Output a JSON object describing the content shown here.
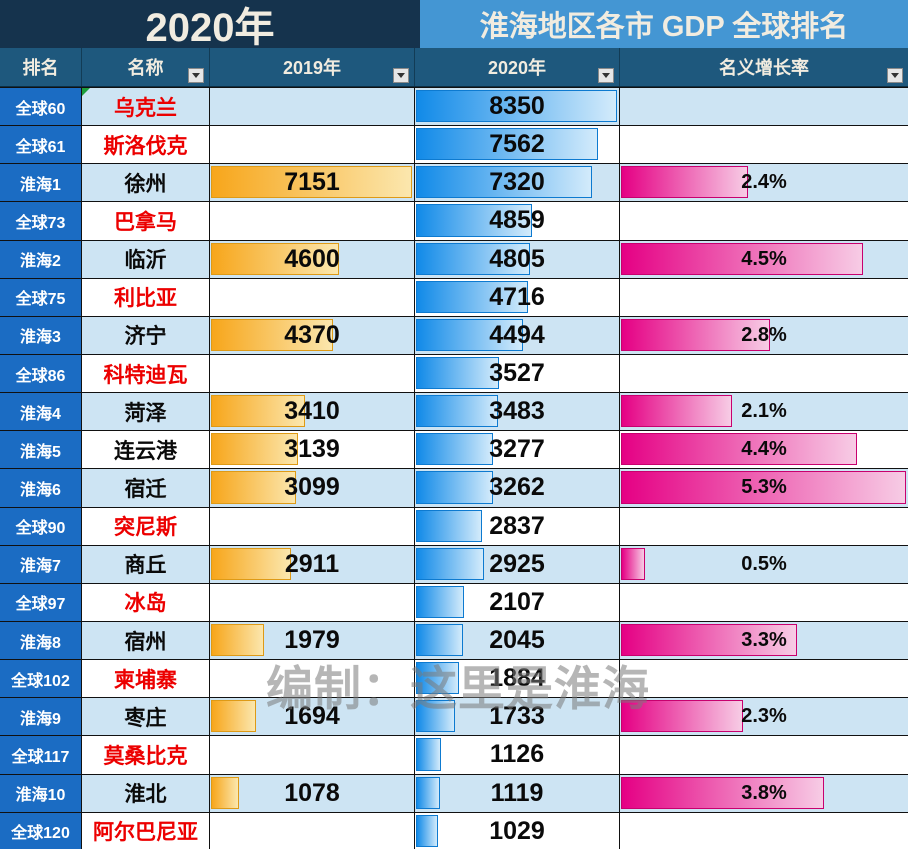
{
  "title": {
    "year": "2020年",
    "main": "淮海地区各市 GDP  全球排名"
  },
  "columns": [
    {
      "label": "排名",
      "filter": false
    },
    {
      "label": "名称",
      "filter": true
    },
    {
      "label": "2019年",
      "filter": true
    },
    {
      "label": "2020年",
      "filter": true
    },
    {
      "label": "名义增长率",
      "filter": true
    }
  ],
  "watermark": "编制：这里是淮海",
  "colors": {
    "title_left_bg": "#15334D",
    "title_right_bg": "#4496D3",
    "header_bg": "#1E587D",
    "rank_cell_bg": "#1B6CC3",
    "row_alt_bg": "#CDE4F3",
    "row_plain_bg": "#FFFFFF",
    "country_name_red": "#EC0000",
    "bar_2019_start": "#F7A61B",
    "bar_2019_end": "#FBE7AE",
    "bar_2020_start": "#118AE8",
    "bar_2020_end": "#D3EBFB",
    "bar_growth_start": "#E50084",
    "bar_growth_end": "#F7CCE5"
  },
  "chart_data": {
    "type": "table",
    "title": "淮海地区各市 GDP 全球排名 (2020年)",
    "scales": {
      "gdp2019_max": 7151,
      "gdp2020_max": 8350,
      "growth_max_pct": 5.3
    },
    "rows": [
      {
        "rank": "全球60",
        "name": "乌克兰",
        "type": "country",
        "gdp2019": null,
        "gdp2020": 8350,
        "growth_pct": null
      },
      {
        "rank": "全球61",
        "name": "斯洛伐克",
        "type": "country",
        "gdp2019": null,
        "gdp2020": 7562,
        "growth_pct": null
      },
      {
        "rank": "淮海1",
        "name": "徐州",
        "type": "city",
        "gdp2019": 7151,
        "gdp2020": 7320,
        "growth_pct": 2.4
      },
      {
        "rank": "全球73",
        "name": "巴拿马",
        "type": "country",
        "gdp2019": null,
        "gdp2020": 4859,
        "growth_pct": null
      },
      {
        "rank": "淮海2",
        "name": "临沂",
        "type": "city",
        "gdp2019": 4600,
        "gdp2020": 4805,
        "growth_pct": 4.5
      },
      {
        "rank": "全球75",
        "name": "利比亚",
        "type": "country",
        "gdp2019": null,
        "gdp2020": 4716,
        "growth_pct": null
      },
      {
        "rank": "淮海3",
        "name": "济宁",
        "type": "city",
        "gdp2019": 4370,
        "gdp2020": 4494,
        "growth_pct": 2.8
      },
      {
        "rank": "全球86",
        "name": "科特迪瓦",
        "type": "country",
        "gdp2019": null,
        "gdp2020": 3527,
        "growth_pct": null
      },
      {
        "rank": "淮海4",
        "name": "菏泽",
        "type": "city",
        "gdp2019": 3410,
        "gdp2020": 3483,
        "growth_pct": 2.1
      },
      {
        "rank": "淮海5",
        "name": "连云港",
        "type": "city",
        "gdp2019": 3139,
        "gdp2020": 3277,
        "growth_pct": 4.4
      },
      {
        "rank": "淮海6",
        "name": "宿迁",
        "type": "city",
        "gdp2019": 3099,
        "gdp2020": 3262,
        "growth_pct": 5.3
      },
      {
        "rank": "全球90",
        "name": "突尼斯",
        "type": "country",
        "gdp2019": null,
        "gdp2020": 2837,
        "growth_pct": null
      },
      {
        "rank": "淮海7",
        "name": "商丘",
        "type": "city",
        "gdp2019": 2911,
        "gdp2020": 2925,
        "growth_pct": 0.5
      },
      {
        "rank": "全球97",
        "name": "冰岛",
        "type": "country",
        "gdp2019": null,
        "gdp2020": 2107,
        "growth_pct": null
      },
      {
        "rank": "淮海8",
        "name": "宿州",
        "type": "city",
        "gdp2019": 1979,
        "gdp2020": 2045,
        "growth_pct": 3.3
      },
      {
        "rank": "全球102",
        "name": "柬埔寨",
        "type": "country",
        "gdp2019": null,
        "gdp2020": 1884,
        "growth_pct": null
      },
      {
        "rank": "淮海9",
        "name": "枣庄",
        "type": "city",
        "gdp2019": 1694,
        "gdp2020": 1733,
        "growth_pct": 2.3
      },
      {
        "rank": "全球117",
        "name": "莫桑比克",
        "type": "country",
        "gdp2019": null,
        "gdp2020": 1126,
        "growth_pct": null
      },
      {
        "rank": "淮海10",
        "name": "淮北",
        "type": "city",
        "gdp2019": 1078,
        "gdp2020": 1119,
        "growth_pct": 3.8
      },
      {
        "rank": "全球120",
        "name": "阿尔巴尼亚",
        "type": "country",
        "gdp2019": null,
        "gdp2020": 1029,
        "growth_pct": null
      }
    ]
  }
}
